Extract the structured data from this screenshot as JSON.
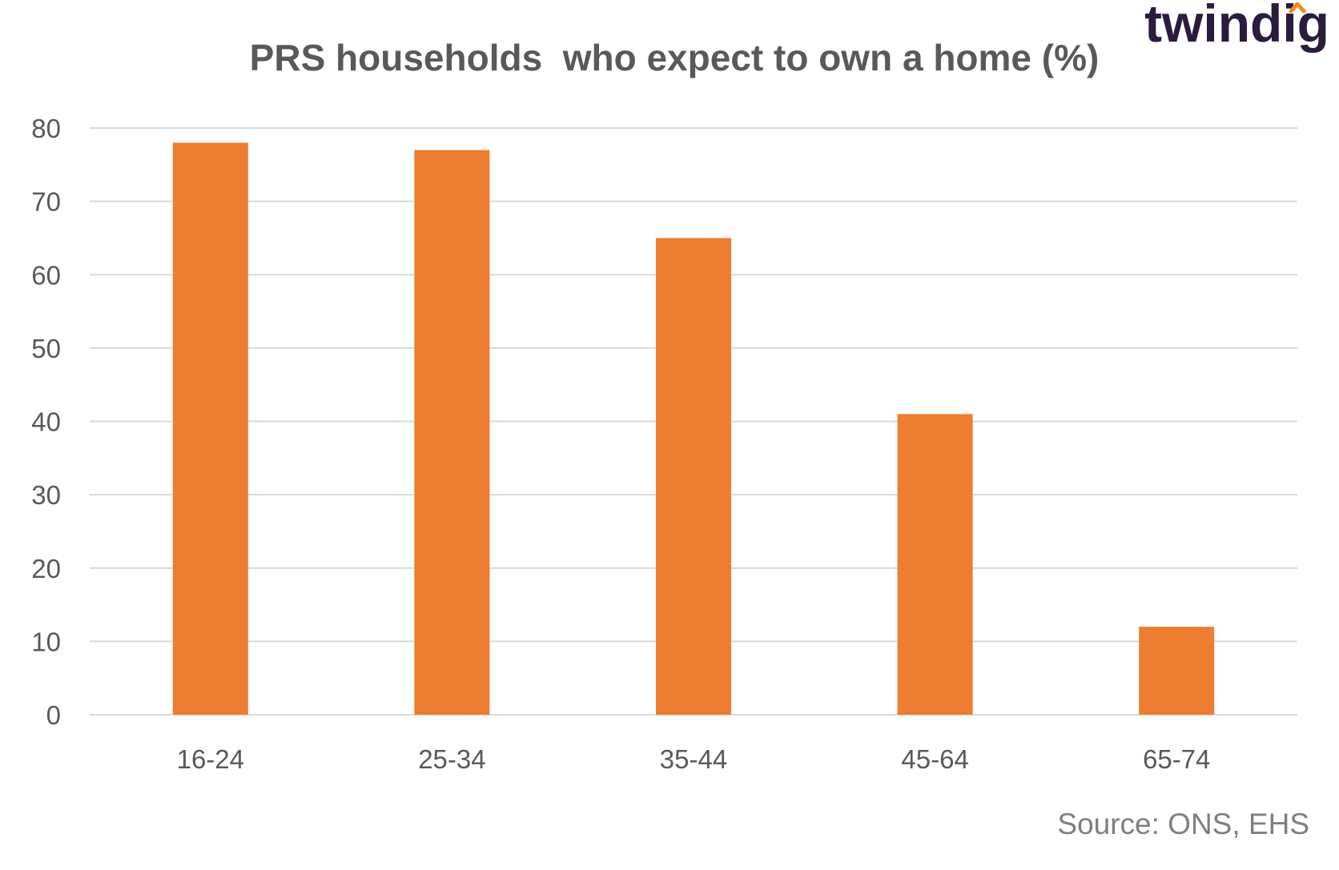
{
  "chart_data": {
    "type": "bar",
    "title": "PRS households  who expect to own a home (%)",
    "categories": [
      "16-24",
      "25-34",
      "35-44",
      "45-64",
      "65-74"
    ],
    "values": [
      78,
      77,
      65,
      41,
      12
    ],
    "ylim": [
      0,
      80
    ],
    "yticks": [
      "0",
      "10",
      "20",
      "30",
      "40",
      "50",
      "60",
      "70",
      "80"
    ],
    "grid": true,
    "legend": "none",
    "bar_color": "#ED7D31",
    "grid_color": "#d9d9d9"
  },
  "source": "Source: ONS, EHS",
  "logo": {
    "text": "twindig",
    "text_color": "#2b1b3d",
    "accent_color": "#F08A24"
  }
}
